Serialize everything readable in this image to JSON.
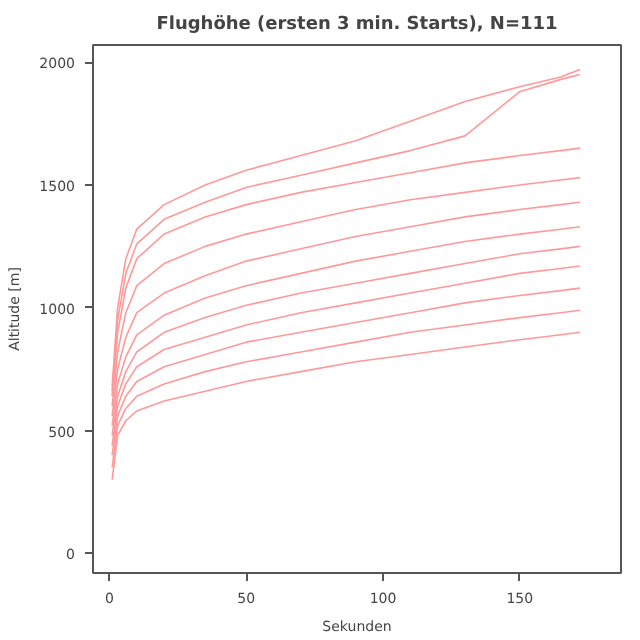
{
  "chart_data": {
    "type": "line",
    "title": "Flughöhe (ersten 3 min. Starts), N=111",
    "xlabel": "Sekunden",
    "ylabel": "Altitude [m]",
    "x": [
      1,
      3,
      6,
      10,
      20,
      35,
      50,
      70,
      90,
      110,
      130,
      150,
      165,
      172
    ],
    "xlim": [
      -6,
      187
    ],
    "ylim": [
      -80,
      2070
    ],
    "xticks": [
      0,
      50,
      100,
      150
    ],
    "yticks": [
      0,
      500,
      1000,
      1500,
      2000
    ],
    "grid": false,
    "marker": "none",
    "line_style": "solid",
    "series": [
      {
        "color": "#ff9999",
        "values": [
          300,
          480,
          540,
          580,
          620,
          660,
          700,
          740,
          780,
          810,
          840,
          870,
          890,
          900
        ]
      },
      {
        "color": "#ff9999",
        "values": [
          350,
          520,
          590,
          640,
          690,
          740,
          780,
          820,
          860,
          900,
          930,
          960,
          980,
          990
        ]
      },
      {
        "color": "#ff9999",
        "values": [
          400,
          560,
          640,
          700,
          760,
          810,
          860,
          900,
          940,
          980,
          1020,
          1050,
          1070,
          1080
        ]
      },
      {
        "color": "#ff9999",
        "values": [
          440,
          600,
          690,
          760,
          830,
          880,
          930,
          980,
          1020,
          1060,
          1100,
          1140,
          1160,
          1170
        ]
      },
      {
        "color": "#ff9999",
        "values": [
          480,
          640,
          740,
          820,
          900,
          960,
          1010,
          1060,
          1100,
          1140,
          1180,
          1220,
          1240,
          1250
        ]
      },
      {
        "color": "#ff9999",
        "values": [
          520,
          690,
          800,
          890,
          970,
          1040,
          1090,
          1140,
          1190,
          1230,
          1270,
          1300,
          1320,
          1330
        ]
      },
      {
        "color": "#ff9999",
        "values": [
          560,
          750,
          880,
          980,
          1060,
          1130,
          1190,
          1240,
          1290,
          1330,
          1370,
          1400,
          1420,
          1430
        ]
      },
      {
        "color": "#ff9999",
        "values": [
          600,
          820,
          980,
          1090,
          1180,
          1250,
          1300,
          1350,
          1400,
          1440,
          1470,
          1500,
          1520,
          1530
        ]
      },
      {
        "color": "#ff9999",
        "values": [
          640,
          900,
          1080,
          1200,
          1300,
          1370,
          1420,
          1470,
          1510,
          1550,
          1590,
          1620,
          1640,
          1650
        ]
      },
      {
        "color": "#ff9999",
        "values": [
          660,
          950,
          1140,
          1260,
          1360,
          1430,
          1490,
          1540,
          1590,
          1640,
          1700,
          1880,
          1930,
          1950
        ]
      },
      {
        "color": "#ff9999",
        "values": [
          680,
          1000,
          1200,
          1320,
          1420,
          1500,
          1560,
          1620,
          1680,
          1760,
          1840,
          1900,
          1940,
          1970
        ]
      }
    ]
  }
}
